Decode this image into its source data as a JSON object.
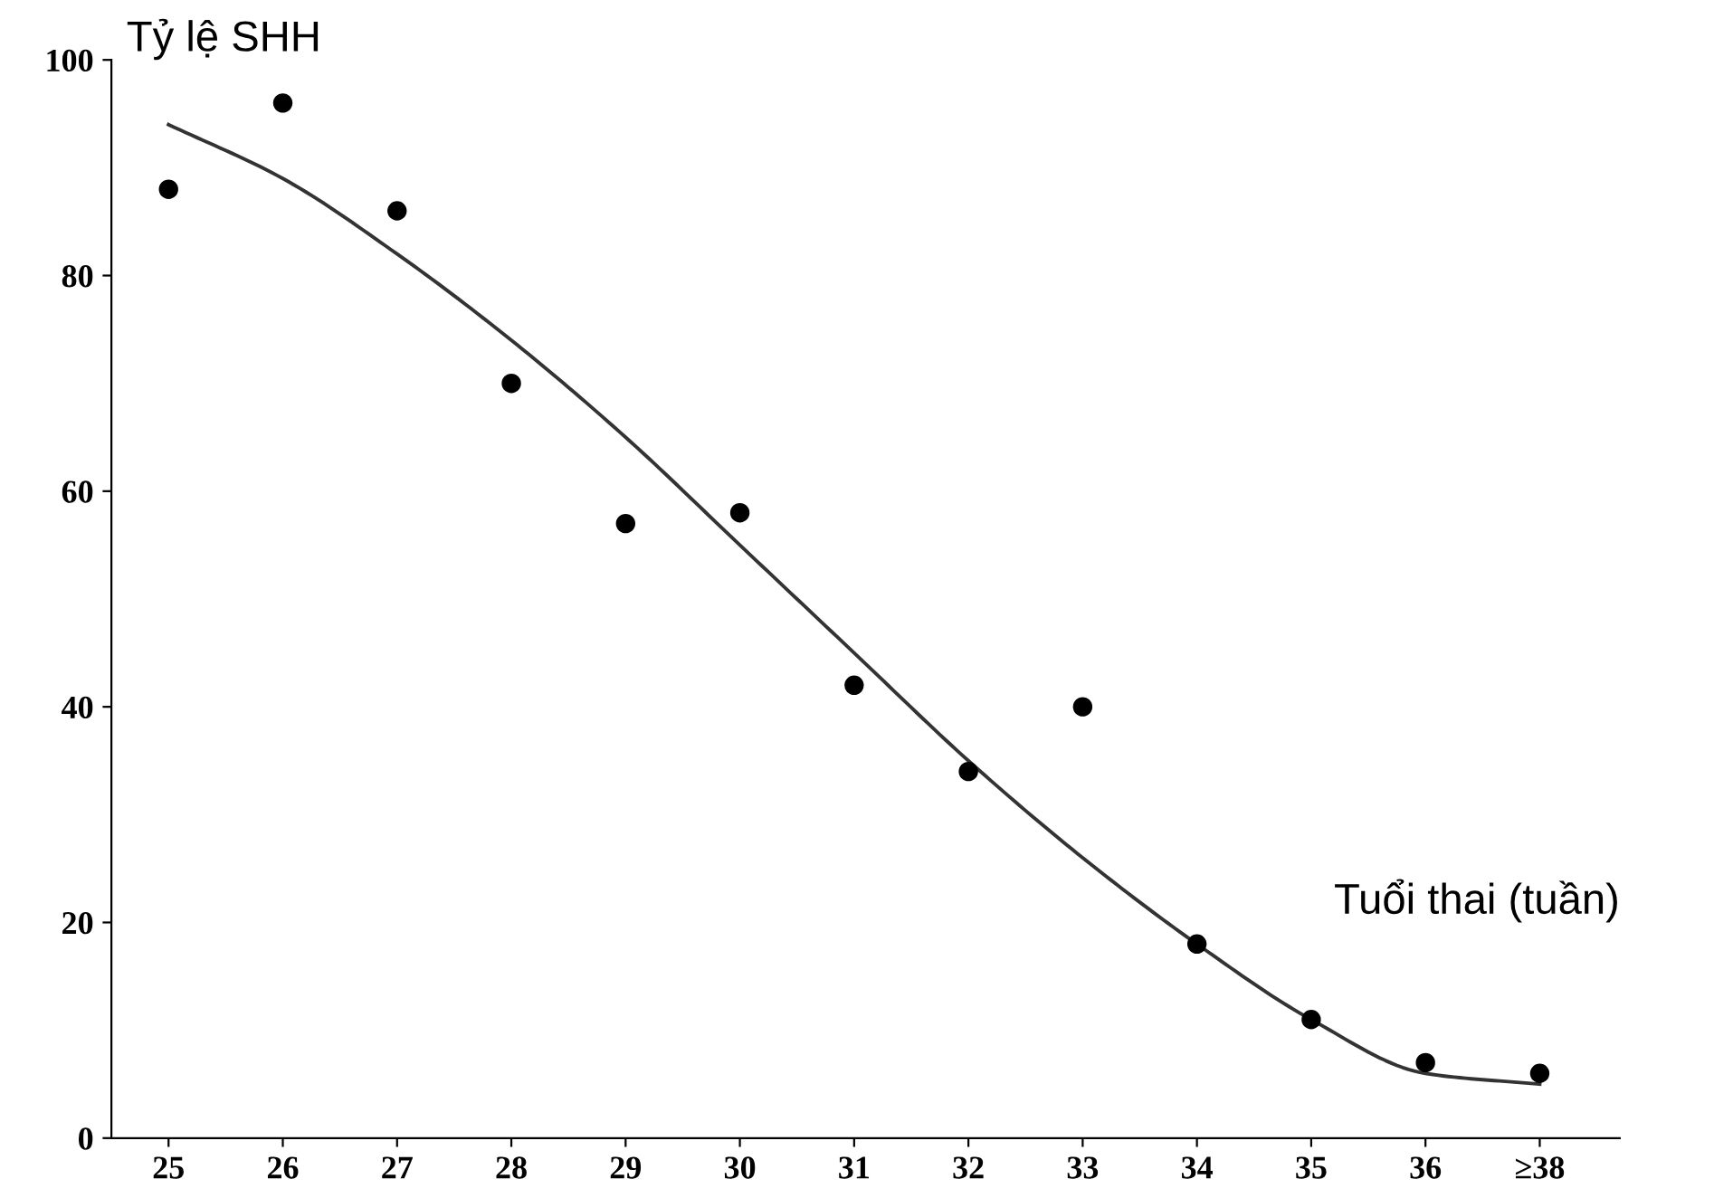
{
  "chart_data": {
    "type": "scatter",
    "ylabel": "Tỷ lệ SHH",
    "xlabel": "Tuổi thai (tuần)",
    "categories": [
      "25",
      "26",
      "27",
      "28",
      "29",
      "30",
      "31",
      "32",
      "33",
      "34",
      "35",
      "36",
      "≥38"
    ],
    "ylim": [
      0,
      100
    ],
    "yticks": [
      0,
      20,
      40,
      60,
      80,
      100
    ],
    "grid": false,
    "legend": false,
    "marker": "circle",
    "series": [
      {
        "color": "#000000",
        "values": [
          88,
          96,
          86,
          70,
          57,
          58,
          42,
          34,
          40,
          18,
          11,
          7,
          6
        ]
      },
      {
        "type": "line",
        "color": "#333333",
        "line_style": "solid",
        "marker": "none",
        "values": [
          94,
          89,
          82,
          74,
          65,
          55,
          45,
          35,
          26,
          18,
          11,
          6,
          5
        ]
      }
    ]
  }
}
